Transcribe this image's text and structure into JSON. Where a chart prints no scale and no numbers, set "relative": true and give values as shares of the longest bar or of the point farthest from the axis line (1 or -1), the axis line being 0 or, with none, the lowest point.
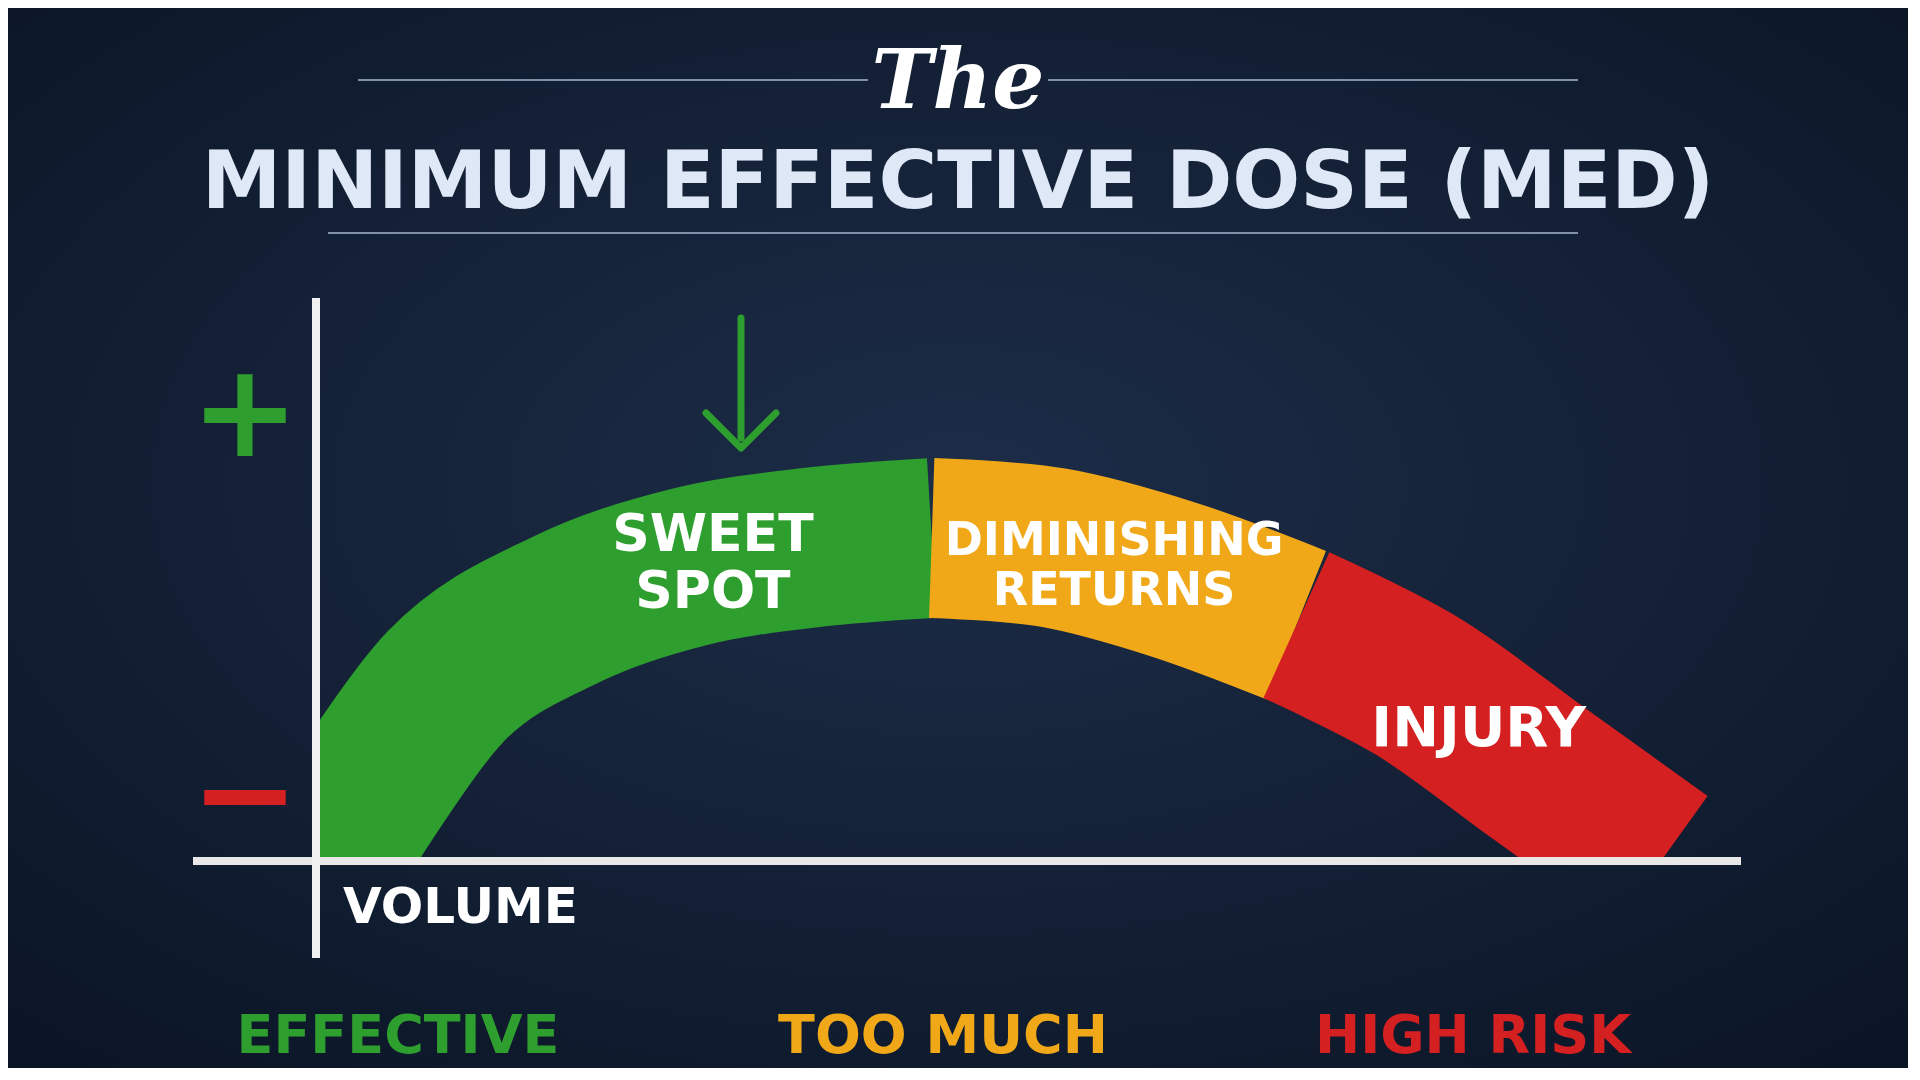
{
  "chart_data": {
    "type": "line",
    "title": "The",
    "subtitle": "MINIMUM EFFECTIVE DOSE (MED)",
    "xlabel": "VOLUME",
    "relative": true,
    "categories": [
      null,
      null,
      null,
      null,
      null,
      null,
      null,
      null,
      null,
      null,
      null,
      null
    ],
    "series": [
      {
        "color": "#2e9e2e",
        "values": [
          0,
          0.54,
          0.78,
          0.91,
          0.97,
          1,
          null,
          null,
          null,
          null,
          null,
          null
        ]
      },
      {
        "name": "DIMINISHING RETURNS",
        "color": "#f0a818",
        "values": [
          null,
          null,
          null,
          null,
          null,
          1,
          0.97,
          0.87,
          0.73,
          null,
          null,
          null
        ]
      },
      {
        "name": "INJURY",
        "color": "#d42020",
        "values": [
          null,
          null,
          null,
          null,
          null,
          null,
          null,
          null,
          0.73,
          0.54,
          0.27,
          0
        ]
      }
    ],
    "annotations": [
      "SWEET SPOT",
      "+",
      "−",
      "EFFECTIVE",
      "TOO MUCH",
      "HIGH RISK"
    ],
    "marker": "none",
    "line_style": "solid"
  }
}
